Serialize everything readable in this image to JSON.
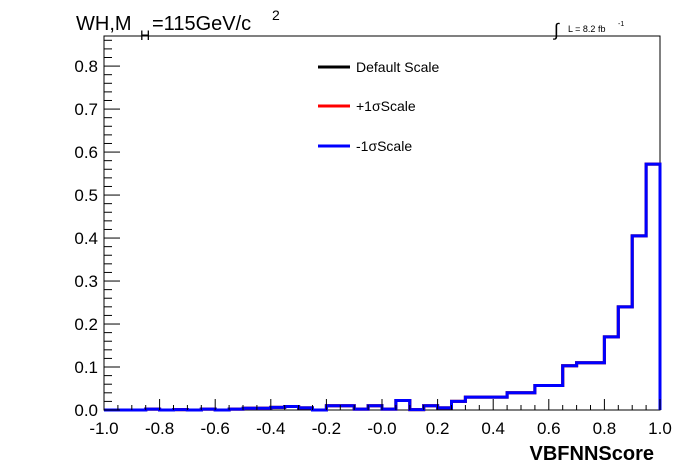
{
  "chart_data": {
    "type": "step-histogram",
    "title_main": "WH,M",
    "title_sub": "H",
    "title_rest": "=115GeV/c",
    "title_sup": "2",
    "lumi": {
      "integral": "∫",
      "label": "L = 8.2 fb",
      "sup": "-1"
    },
    "xlabel": "VBFNNScore",
    "ylabel": "",
    "xlim": [
      -1.0,
      1.0
    ],
    "ylim": [
      0.0,
      0.87
    ],
    "x_ticks": [
      "-1.0",
      "-0.8",
      "-0.6",
      "-0.4",
      "-0.2",
      "-0.0",
      "0.2",
      "0.4",
      "0.6",
      "0.8",
      "1.0"
    ],
    "y_ticks": [
      "0.0",
      "0.1",
      "0.2",
      "0.3",
      "0.4",
      "0.5",
      "0.6",
      "0.7",
      "0.8"
    ],
    "bin_edges": [
      -1.0,
      -0.95,
      -0.9,
      -0.85,
      -0.8,
      -0.75,
      -0.7,
      -0.65,
      -0.6,
      -0.55,
      -0.5,
      -0.45,
      -0.4,
      -0.35,
      -0.3,
      -0.25,
      -0.2,
      -0.15,
      -0.1,
      -0.05,
      0.0,
      0.05,
      0.1,
      0.15,
      0.2,
      0.25,
      0.3,
      0.35,
      0.4,
      0.45,
      0.5,
      0.55,
      0.6,
      0.65,
      0.7,
      0.75,
      0.8,
      0.85,
      0.9,
      0.95,
      1.0
    ],
    "series": [
      {
        "name": "Default Scale",
        "color": "#000000",
        "values": [
          0.0,
          0.0,
          0.0,
          0.002,
          0.0,
          0.001,
          0.0,
          0.002,
          0.0,
          0.002,
          0.004,
          0.004,
          0.006,
          0.008,
          0.005,
          0.0,
          0.01,
          0.01,
          0.002,
          0.01,
          0.002,
          0.022,
          0.001,
          0.01,
          0.005,
          0.02,
          0.03,
          0.03,
          0.03,
          0.04,
          0.04,
          0.057,
          0.057,
          0.103,
          0.11,
          0.11,
          0.17,
          0.24,
          0.405,
          0.572
        ]
      },
      {
        "name": "+1σScale",
        "color": "#ff0000",
        "values": [
          0.0,
          0.0,
          0.0,
          0.002,
          0.0,
          0.001,
          0.0,
          0.002,
          0.0,
          0.002,
          0.004,
          0.004,
          0.006,
          0.008,
          0.005,
          0.0,
          0.01,
          0.01,
          0.002,
          0.01,
          0.002,
          0.022,
          0.001,
          0.01,
          0.005,
          0.02,
          0.03,
          0.03,
          0.03,
          0.04,
          0.04,
          0.057,
          0.057,
          0.103,
          0.11,
          0.11,
          0.17,
          0.24,
          0.405,
          0.572
        ]
      },
      {
        "name": "-1σScale",
        "color": "#0000ff",
        "values": [
          0.0,
          0.0,
          0.0,
          0.002,
          0.0,
          0.001,
          0.0,
          0.002,
          0.0,
          0.002,
          0.004,
          0.004,
          0.006,
          0.008,
          0.005,
          0.0,
          0.01,
          0.01,
          0.002,
          0.01,
          0.002,
          0.022,
          0.001,
          0.01,
          0.005,
          0.02,
          0.03,
          0.03,
          0.03,
          0.04,
          0.04,
          0.057,
          0.057,
          0.103,
          0.11,
          0.11,
          0.17,
          0.24,
          0.405,
          0.572
        ]
      }
    ],
    "legend_position": "top-center",
    "grid": false
  }
}
